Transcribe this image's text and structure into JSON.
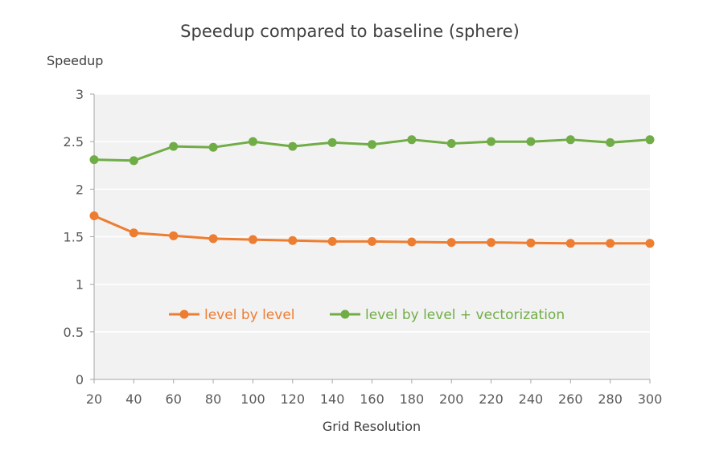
{
  "chart_data": {
    "type": "line",
    "title": "Speedup compared to baseline (sphere)",
    "xlabel": "Grid Resolution",
    "ylabel": "Speedup",
    "x": [
      20,
      40,
      60,
      80,
      100,
      120,
      140,
      160,
      180,
      200,
      220,
      240,
      260,
      280,
      300
    ],
    "ylim": [
      0,
      3
    ],
    "yticks": [
      0,
      0.5,
      1,
      1.5,
      2,
      2.5,
      3
    ],
    "grid": true,
    "legend_position": "inside-center",
    "series": [
      {
        "name": "level by level",
        "color": "#ED7D31",
        "values": [
          1.72,
          1.54,
          1.51,
          1.48,
          1.47,
          1.46,
          1.45,
          1.45,
          1.445,
          1.44,
          1.44,
          1.435,
          1.43,
          1.43,
          1.43
        ]
      },
      {
        "name": "level by level + vectorization",
        "color": "#70AD47",
        "values": [
          2.31,
          2.3,
          2.45,
          2.44,
          2.5,
          2.45,
          2.49,
          2.47,
          2.52,
          2.48,
          2.5,
          2.5,
          2.52,
          2.49,
          2.52
        ]
      }
    ]
  },
  "colors": {
    "plot_background": "#F2F2F2",
    "gridline": "#FFFFFF",
    "axis": "#A6A6A6",
    "text": "#595959",
    "title": "#404040"
  }
}
